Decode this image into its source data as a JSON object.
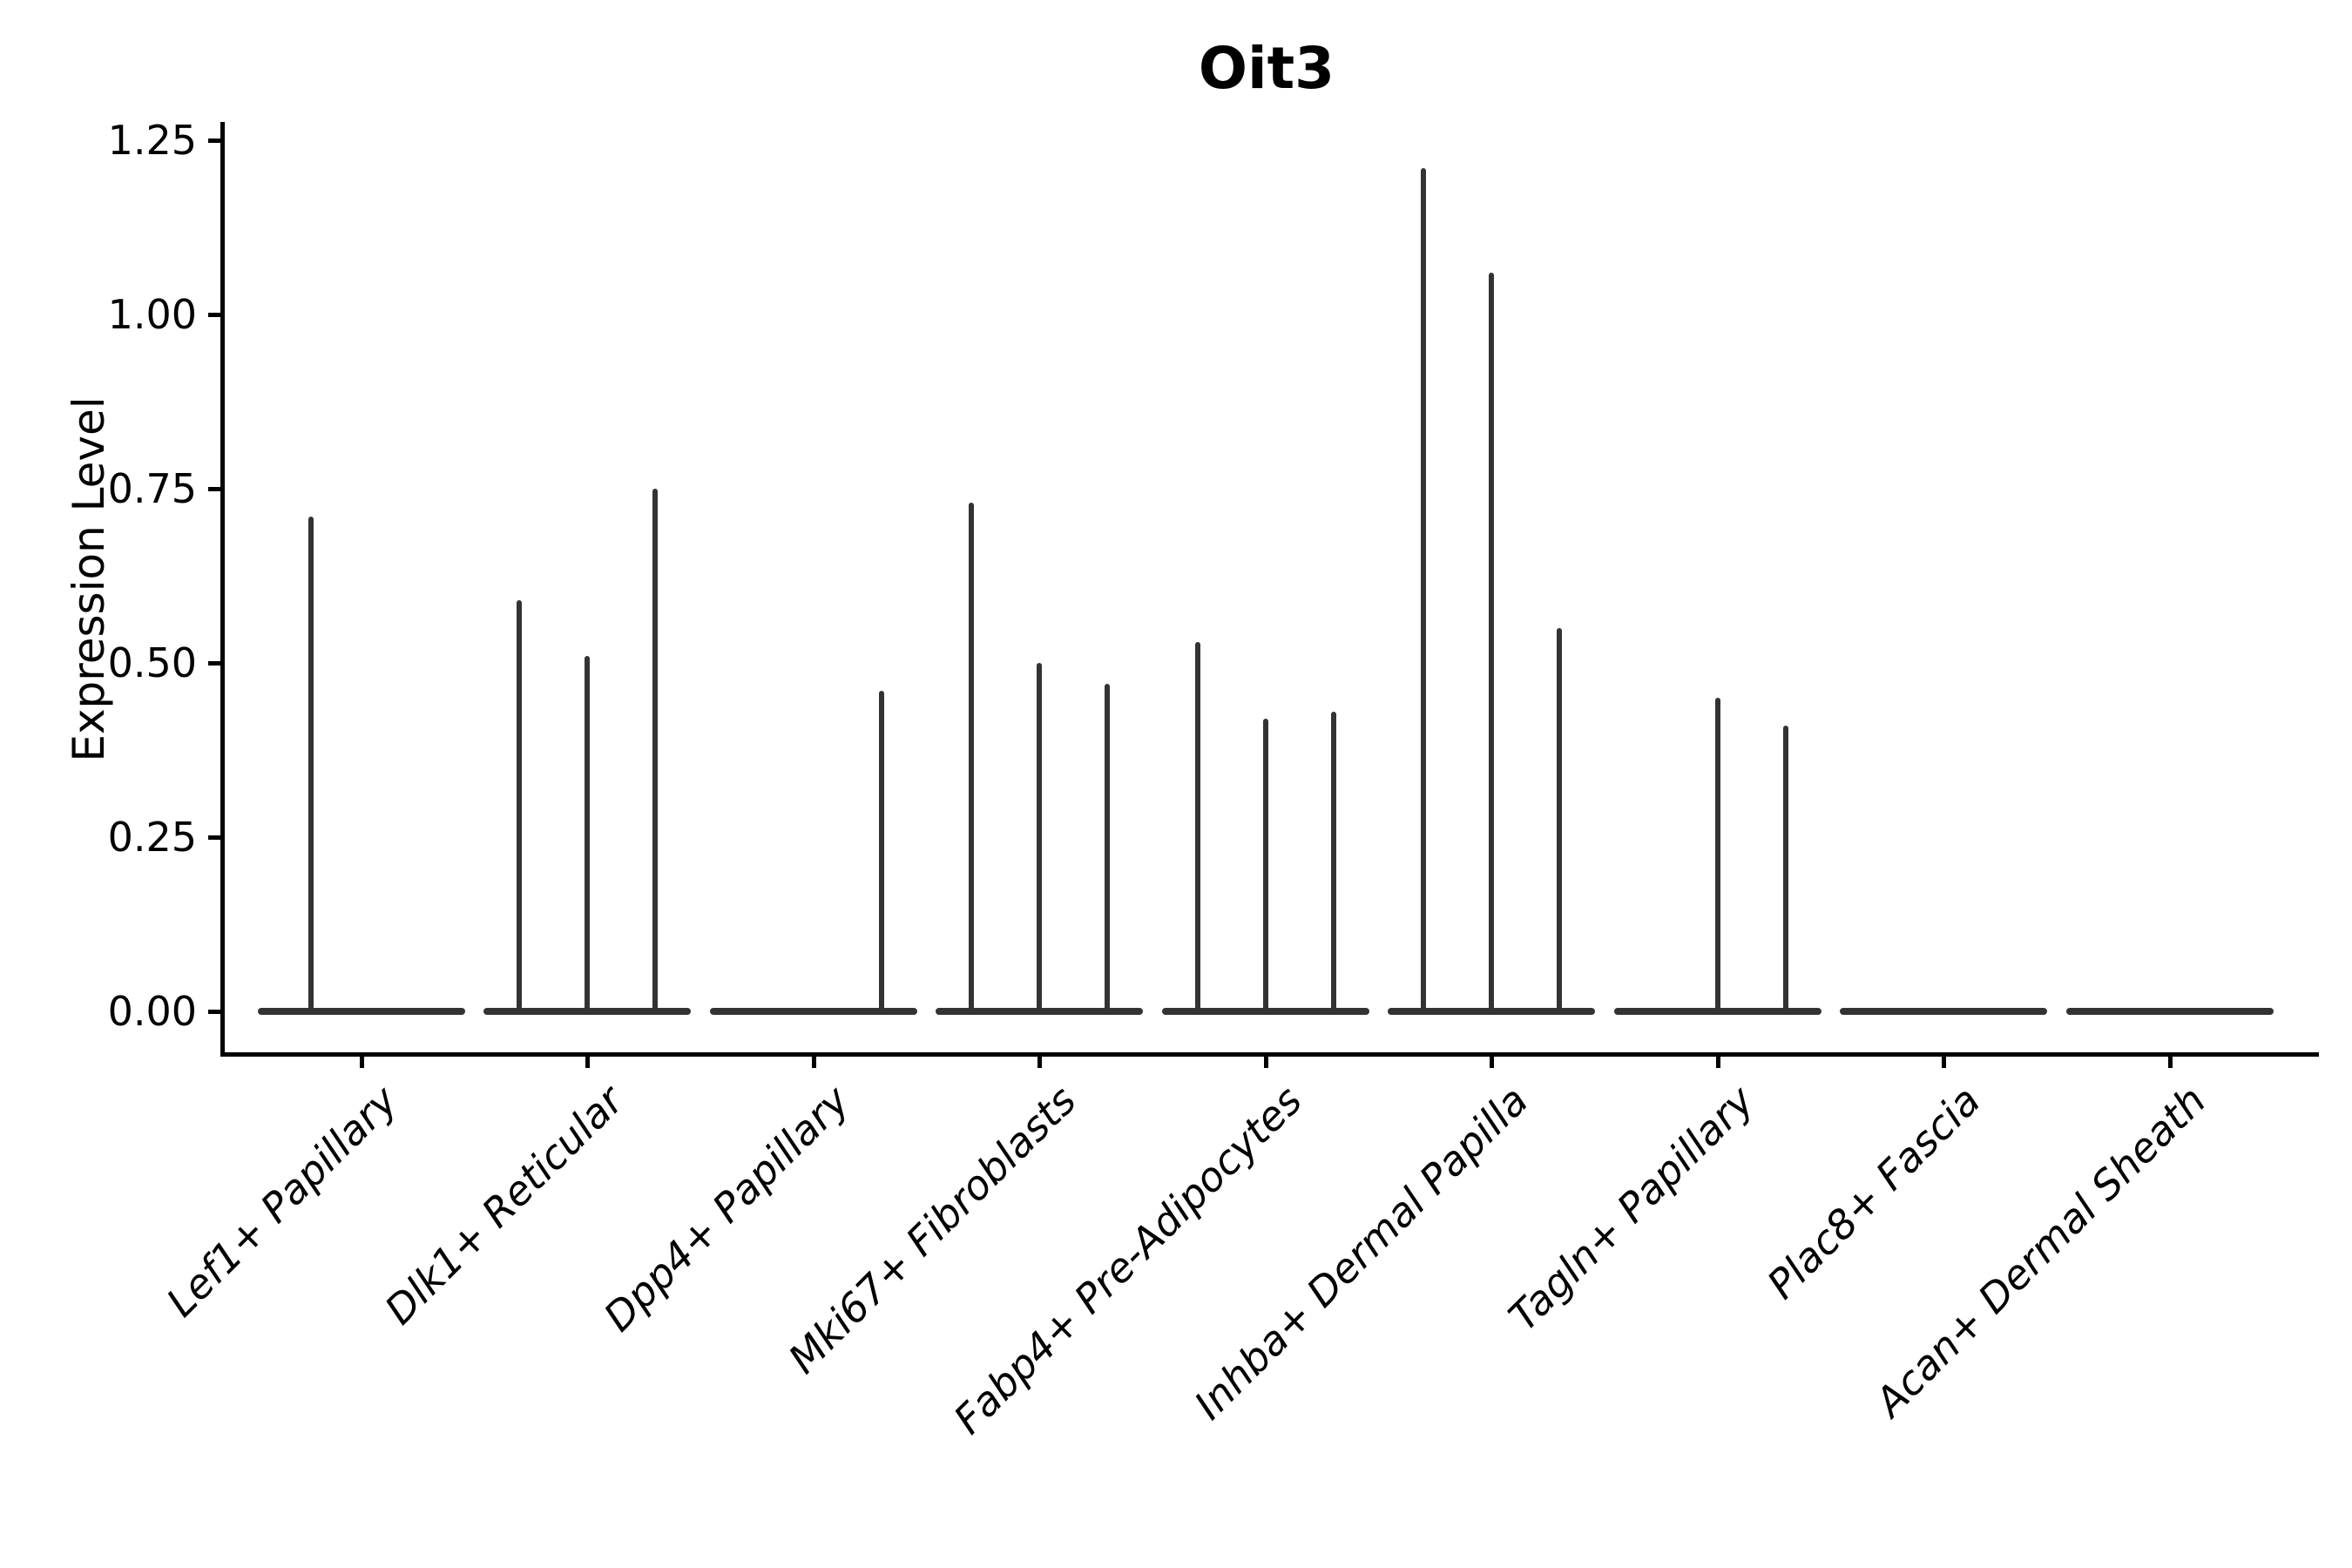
{
  "title": "Oit3",
  "y_axis": {
    "label": "Expression Level",
    "ticks": [
      "0.00",
      "0.25",
      "0.50",
      "0.75",
      "1.00",
      "1.25"
    ],
    "tick_values": [
      0,
      0.25,
      0.5,
      0.75,
      1.0,
      1.25
    ]
  },
  "x_axis": {
    "categories": [
      "Lef1+ Papillary",
      "Dlk1+ Reticular",
      "Dpp4+ Papillary",
      "Mki67+ Fibroblasts",
      "Fabp4+ Pre-Adipocytes",
      "Inhba+ Dermal Papilla",
      "Tagln+ Papillary",
      "Plac8+ Fascia",
      "Acan+ Dermal Sheath"
    ]
  },
  "colors": {
    "violin": "#333333",
    "axis": "#000000",
    "text": "#000000",
    "background": "#ffffff"
  },
  "chart_data": {
    "type": "violin",
    "title": "Oit3",
    "xlabel": "",
    "ylabel": "Expression Level",
    "ylim": [
      -0.06,
      1.28
    ],
    "yticks": [
      0,
      0.25,
      0.5,
      0.75,
      1.0,
      1.25
    ],
    "grid": false,
    "legend": "none",
    "categories": [
      "Lef1+ Papillary",
      "Dlk1+ Reticular",
      "Dpp4+ Papillary",
      "Mki67+ Fibroblasts",
      "Fabp4+ Pre-Adipocytes",
      "Inhba+ Dermal Papilla",
      "Tagln+ Papillary",
      "Plac8+ Fascia",
      "Acan+ Dermal Sheath"
    ],
    "series": [
      {
        "category": "Lef1+ Papillary",
        "spikes": [
          {
            "offset": -58,
            "max": 0.71
          }
        ]
      },
      {
        "category": "Dlk1+ Reticular",
        "spikes": [
          {
            "offset": -78,
            "max": 0.59
          },
          {
            "offset": 0,
            "max": 0.51
          },
          {
            "offset": 78,
            "max": 0.75
          }
        ]
      },
      {
        "category": "Dpp4+ Papillary",
        "spikes": [
          {
            "offset": 78,
            "max": 0.46
          }
        ]
      },
      {
        "category": "Mki67+ Fibroblasts",
        "spikes": [
          {
            "offset": -78,
            "max": 0.73
          },
          {
            "offset": 0,
            "max": 0.5
          },
          {
            "offset": 78,
            "max": 0.47
          }
        ]
      },
      {
        "category": "Fabp4+ Pre-Adipocytes",
        "spikes": [
          {
            "offset": -78,
            "max": 0.53
          },
          {
            "offset": 0,
            "max": 0.42
          },
          {
            "offset": 78,
            "max": 0.43
          }
        ]
      },
      {
        "category": "Inhba+ Dermal Papilla",
        "spikes": [
          {
            "offset": -78,
            "max": 1.21
          },
          {
            "offset": 0,
            "max": 1.06
          },
          {
            "offset": 78,
            "max": 0.55
          }
        ]
      },
      {
        "category": "Tagln+ Papillary",
        "spikes": [
          {
            "offset": 0,
            "max": 0.45
          },
          {
            "offset": 78,
            "max": 0.41
          }
        ]
      },
      {
        "category": "Plac8+ Fascia",
        "spikes": []
      },
      {
        "category": "Acan+ Dermal Sheath",
        "spikes": []
      }
    ]
  }
}
